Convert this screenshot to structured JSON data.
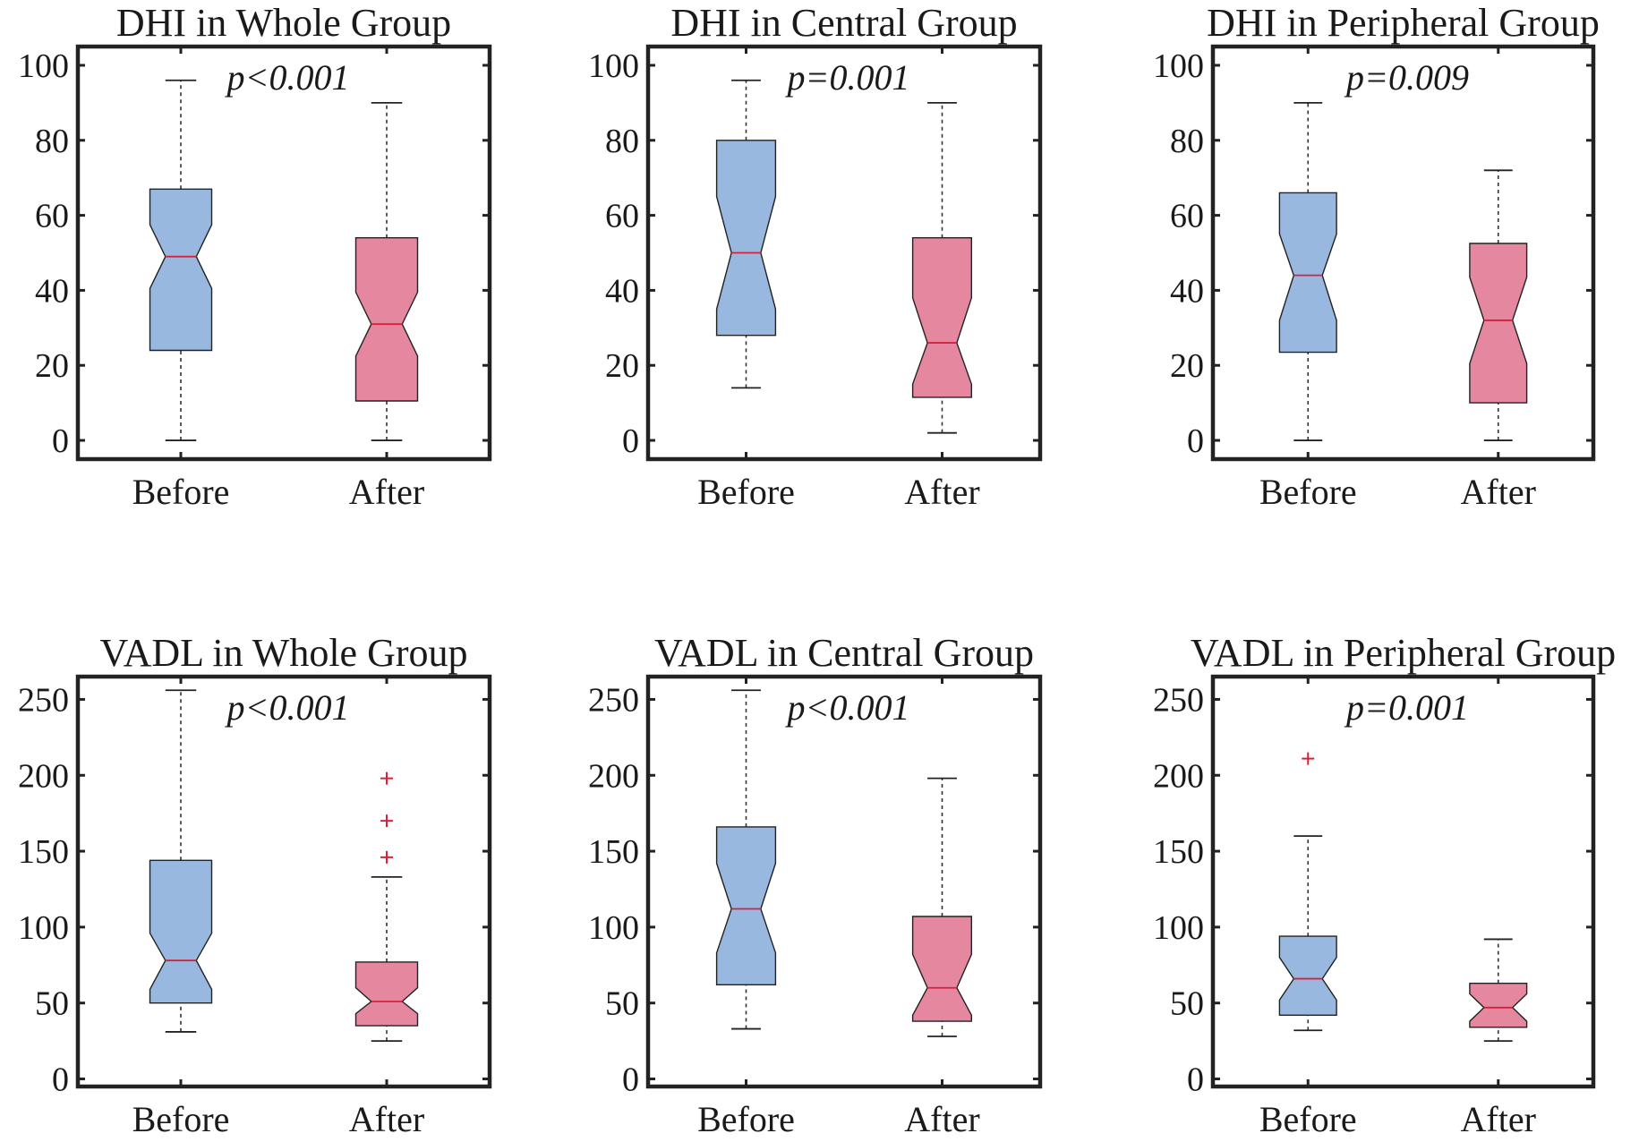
{
  "chart_data": [
    {
      "type": "boxplot",
      "notched": true,
      "title": "DHI in Whole Group",
      "annotation": "p<0.001",
      "yticks": [
        0,
        20,
        40,
        60,
        80,
        100
      ],
      "ylim": [
        -5,
        105
      ],
      "categories": [
        "Before",
        "After"
      ],
      "boxes": [
        {
          "label": "Before",
          "whisker_low": 0,
          "q1": 24,
          "median": 49,
          "q3": 67,
          "whisker_high": 96,
          "notch_low": 40.5,
          "notch_high": 57.5,
          "outliers": []
        },
        {
          "label": "After",
          "whisker_low": 0,
          "q1": 10.5,
          "median": 31,
          "q3": 54,
          "whisker_high": 90,
          "notch_low": 22.5,
          "notch_high": 39.5,
          "outliers": []
        }
      ]
    },
    {
      "type": "boxplot",
      "notched": true,
      "title": "DHI in Central Group",
      "annotation": "p=0.001",
      "yticks": [
        0,
        20,
        40,
        60,
        80,
        100
      ],
      "ylim": [
        -5,
        105
      ],
      "categories": [
        "Before",
        "After"
      ],
      "boxes": [
        {
          "label": "Before",
          "whisker_low": 14,
          "q1": 28,
          "median": 50,
          "q3": 80,
          "whisker_high": 96,
          "notch_low": 35,
          "notch_high": 65,
          "outliers": []
        },
        {
          "label": "After",
          "whisker_low": 2,
          "q1": 11.5,
          "median": 26,
          "q3": 54,
          "whisker_high": 90,
          "notch_low": 15,
          "notch_high": 38,
          "outliers": []
        }
      ]
    },
    {
      "type": "boxplot",
      "notched": true,
      "title": "DHI in Peripheral Group",
      "annotation": "p=0.009",
      "yticks": [
        0,
        20,
        40,
        60,
        80,
        100
      ],
      "ylim": [
        -5,
        105
      ],
      "categories": [
        "Before",
        "After"
      ],
      "boxes": [
        {
          "label": "Before",
          "whisker_low": 0,
          "q1": 23.5,
          "median": 44,
          "q3": 66,
          "whisker_high": 90,
          "notch_low": 32,
          "notch_high": 55,
          "outliers": []
        },
        {
          "label": "After",
          "whisker_low": 0,
          "q1": 10,
          "median": 32,
          "q3": 52.5,
          "whisker_high": 72,
          "notch_low": 20.5,
          "notch_high": 43.5,
          "outliers": []
        }
      ]
    },
    {
      "type": "boxplot",
      "notched": true,
      "title": "VADL in Whole Group",
      "annotation": "p<0.001",
      "yticks": [
        0,
        50,
        100,
        150,
        200,
        250
      ],
      "ylim": [
        -5,
        265
      ],
      "categories": [
        "Before",
        "After"
      ],
      "boxes": [
        {
          "label": "Before",
          "whisker_low": 31,
          "q1": 50,
          "median": 78,
          "q3": 144,
          "whisker_high": 256,
          "notch_low": 59,
          "notch_high": 96,
          "outliers": []
        },
        {
          "label": "After",
          "whisker_low": 25,
          "q1": 35,
          "median": 51,
          "q3": 77,
          "whisker_high": 133,
          "notch_low": 43,
          "notch_high": 60,
          "outliers": [
            146,
            170,
            198
          ]
        }
      ]
    },
    {
      "type": "boxplot",
      "notched": true,
      "title": "VADL in Central Group",
      "annotation": "p<0.001",
      "yticks": [
        0,
        50,
        100,
        150,
        200,
        250
      ],
      "ylim": [
        -5,
        265
      ],
      "categories": [
        "Before",
        "After"
      ],
      "boxes": [
        {
          "label": "Before",
          "whisker_low": 33,
          "q1": 62,
          "median": 112,
          "q3": 166,
          "whisker_high": 256,
          "notch_low": 83,
          "notch_high": 142,
          "outliers": []
        },
        {
          "label": "After",
          "whisker_low": 28,
          "q1": 38,
          "median": 60,
          "q3": 107,
          "whisker_high": 198,
          "notch_low": 42,
          "notch_high": 82,
          "outliers": []
        }
      ]
    },
    {
      "type": "boxplot",
      "notched": true,
      "title": "VADL in Peripheral Group",
      "annotation": "p=0.001",
      "yticks": [
        0,
        50,
        100,
        150,
        200,
        250
      ],
      "ylim": [
        -5,
        265
      ],
      "categories": [
        "Before",
        "After"
      ],
      "boxes": [
        {
          "label": "Before",
          "whisker_low": 32,
          "q1": 42,
          "median": 66,
          "q3": 94,
          "whisker_high": 160,
          "notch_low": 52,
          "notch_high": 80,
          "outliers": [
            211
          ]
        },
        {
          "label": "After",
          "whisker_low": 25,
          "q1": 34,
          "median": 47,
          "q3": 63,
          "whisker_high": 92,
          "notch_low": 38,
          "notch_high": 56,
          "outliers": []
        }
      ]
    }
  ],
  "colors": {
    "before_fill": "#98b8df",
    "after_fill": "#e5889f",
    "median_line": "#d8203c",
    "outlier_marker": "#d8203c",
    "frame": "#222222"
  }
}
